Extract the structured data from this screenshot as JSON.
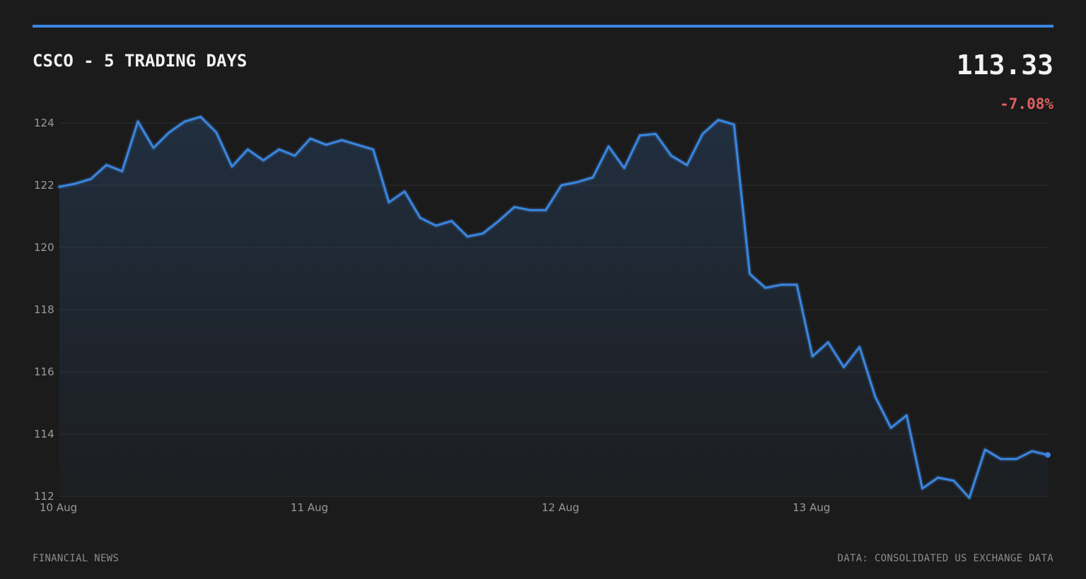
{
  "colors": {
    "background": "#1b1b1b",
    "accent": "#3b86e0",
    "negative": "#e06060",
    "grid": "#2c2c2c",
    "muted": "#8c8c8c"
  },
  "header": {
    "title": "CSCO - 5 TRADING DAYS",
    "price": "113.33",
    "change": "-7.08%"
  },
  "footer": {
    "source_left": "FINANCIAL NEWS",
    "source_right": "DATA: CONSOLIDATED US EXCHANGE DATA"
  },
  "chart_data": {
    "type": "area",
    "title": "CSCO - 5 TRADING DAYS",
    "xlabel": "",
    "ylabel": "",
    "ylim": [
      112,
      124
    ],
    "yticks": [
      124,
      122,
      120,
      118,
      116,
      114,
      112
    ],
    "xticks": [
      "10 Aug",
      "11 Aug",
      "12 Aug",
      "13 Aug"
    ],
    "grid": true,
    "series": [
      {
        "values": [
          121.95,
          122.05,
          122.2,
          122.65,
          122.45,
          124.05,
          123.2,
          123.7,
          124.05,
          124.2,
          123.7,
          122.6,
          123.15,
          122.8,
          123.15,
          122.95,
          123.5,
          123.3,
          123.45,
          123.3,
          123.15,
          121.45,
          121.8,
          120.95,
          120.7,
          120.85,
          120.35,
          120.45,
          120.85,
          121.3,
          121.2,
          121.2,
          122.0,
          122.1,
          122.25,
          123.25,
          122.55,
          123.6,
          123.65,
          122.95,
          122.65,
          123.65,
          124.1,
          123.95,
          119.15,
          118.7,
          118.8,
          118.8,
          116.5,
          116.95,
          116.15,
          116.8,
          115.2,
          114.2,
          114.6,
          112.25,
          112.6,
          112.5,
          111.95,
          113.5,
          113.2,
          113.2,
          113.45,
          113.33
        ]
      }
    ]
  }
}
